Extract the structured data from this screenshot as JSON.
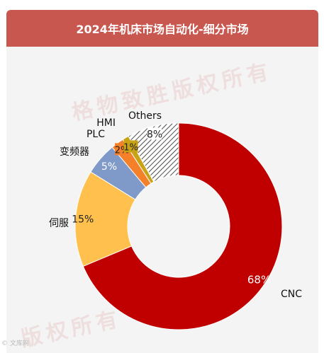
{
  "chart_data": {
    "type": "pie",
    "donut": true,
    "title": "2024年机床市场自动化-细分市场",
    "categories": [
      "CNC",
      "伺服",
      "变频器",
      "PLC",
      "HMI",
      "Others"
    ],
    "values": [
      68,
      15,
      5,
      2,
      1,
      8
    ],
    "value_labels": [
      "68%",
      "15%",
      "5%",
      "2%",
      "1%",
      "8%"
    ],
    "colors": [
      "#c00000",
      "#ffc04d",
      "#7f9ac8",
      "#f4802a",
      "#c9a215",
      "#ffffff"
    ],
    "others_pattern": "hatched",
    "legend": "none"
  },
  "header": {
    "bg_color": "#c8574f"
  },
  "watermark": {
    "text_main": "格物致胜版权所有",
    "text_bottom": "版权所有",
    "corner": "© 文库网"
  }
}
